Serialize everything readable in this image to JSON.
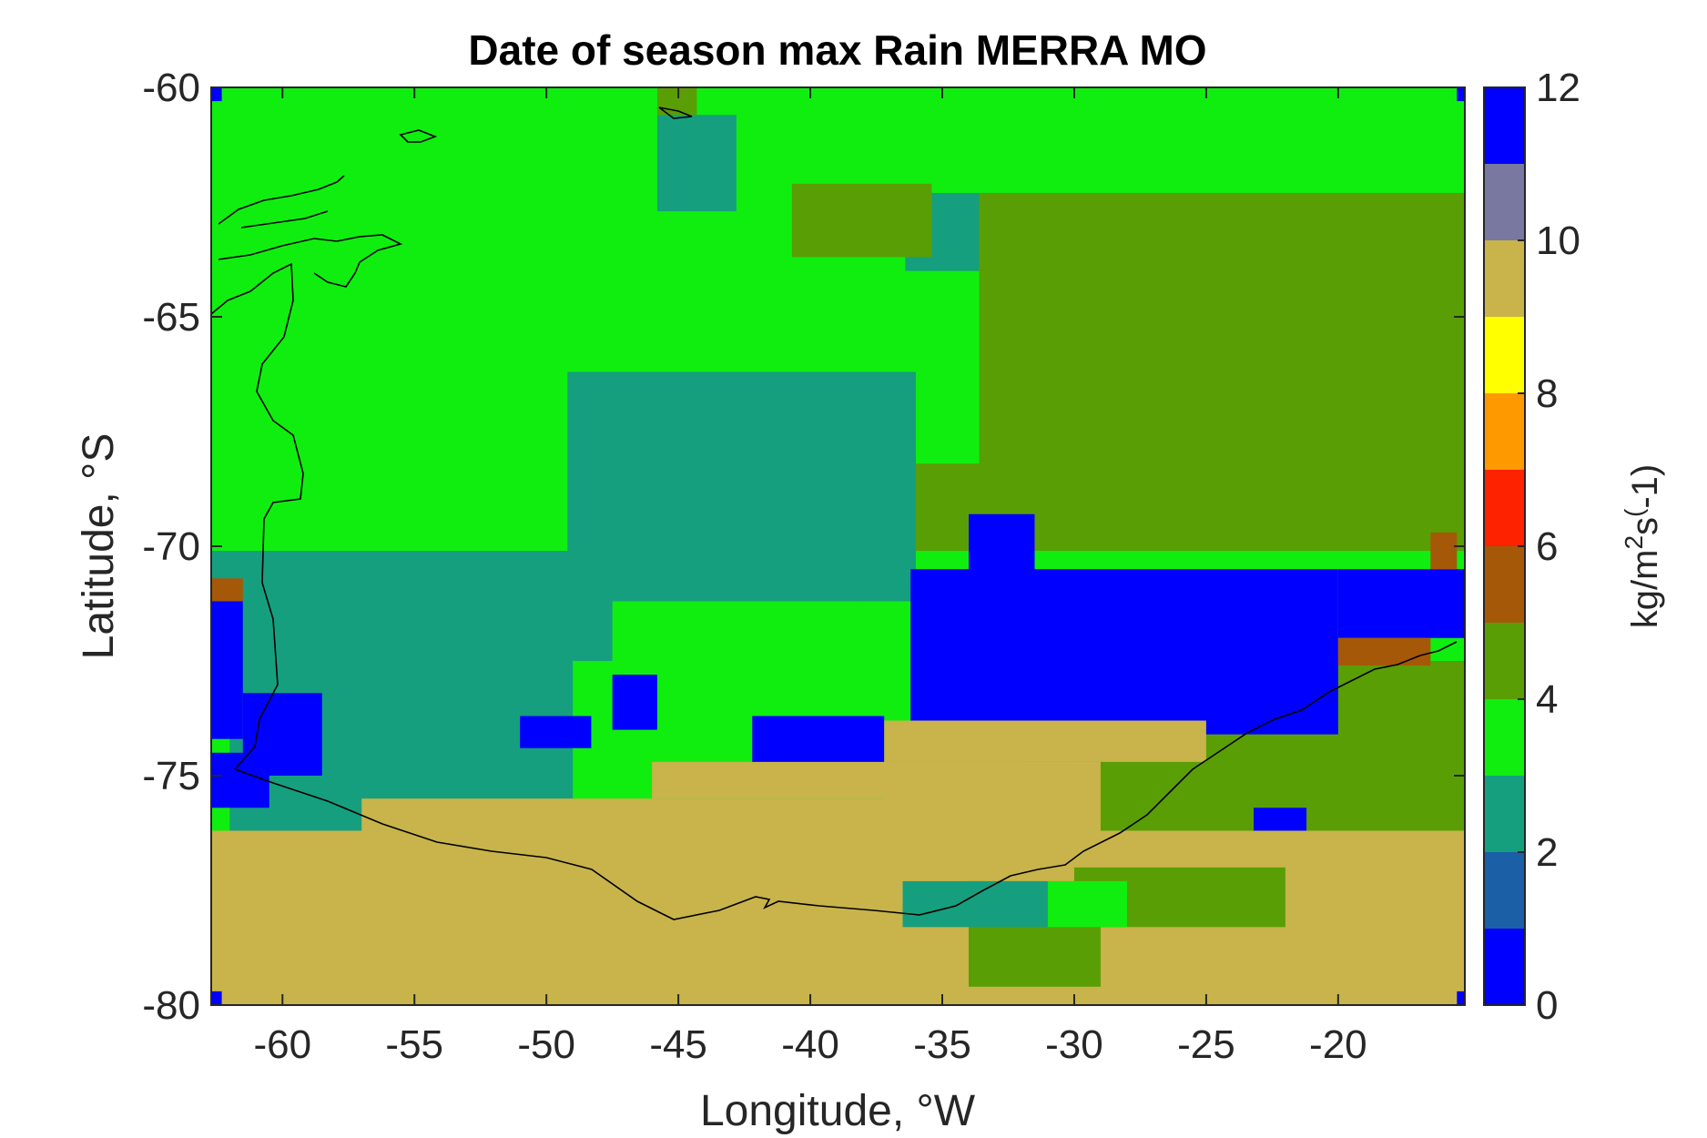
{
  "chart_data": {
    "type": "heatmap",
    "title": "Date of season max Rain MERRA MO",
    "xlabel": "Longitude, °W",
    "ylabel": "Latitude, °S",
    "xlim": [
      -62.7,
      -15.2
    ],
    "ylim": [
      -80,
      -60
    ],
    "xticks": [
      -60,
      -55,
      -50,
      -45,
      -40,
      -35,
      -30,
      -25,
      -20
    ],
    "yticks": [
      -60,
      -65,
      -70,
      -75,
      -80
    ],
    "colorbar": {
      "label": "kg/m^2s^(-1)",
      "label_main": "kg/m",
      "label_sup1": "2",
      "label_mid": "s",
      "label_sup2": "(",
      "label_end": "-1)",
      "range": [
        0,
        12
      ],
      "ticks": [
        0,
        2,
        4,
        6,
        8,
        10,
        12
      ],
      "colors": [
        "#0000ff",
        "#1b5fa6",
        "#169f7e",
        "#10ee10",
        "#5a9e05",
        "#a55808",
        "#ff2200",
        "#ff9900",
        "#ffff00",
        "#c8b44a",
        "#7878a0",
        "#0000ff"
      ]
    },
    "background_value": 3,
    "regions": [
      {
        "value": 2,
        "lon": [
          -45.8,
          -42.8
        ],
        "lat": [
          -62.7,
          -60.6
        ]
      },
      {
        "value": 2,
        "lon": [
          -36.4,
          -33.0
        ],
        "lat": [
          -64.0,
          -62.3
        ]
      },
      {
        "value": 4,
        "lon": [
          -40.7,
          -35.4
        ],
        "lat": [
          -63.7,
          -62.1
        ]
      },
      {
        "value": 4,
        "lon": [
          -45.8,
          -44.3
        ],
        "lat": [
          -60.6,
          -60.0
        ]
      },
      {
        "value": 4,
        "lon": [
          -33.6,
          -15.2
        ],
        "lat": [
          -68.3,
          -62.3
        ]
      },
      {
        "value": 4,
        "lon": [
          -36.5,
          -15.2
        ],
        "lat": [
          -70.1,
          -68.2
        ]
      },
      {
        "value": 2,
        "lon": [
          -49.2,
          -36.0
        ],
        "lat": [
          -71.2,
          -66.2
        ]
      },
      {
        "value": 2,
        "lon": [
          -62.7,
          -38.0
        ],
        "lat": [
          -72.5,
          -70.1
        ]
      },
      {
        "value": 2,
        "lon": [
          -62.0,
          -49.0
        ],
        "lat": [
          -76.3,
          -72.5
        ]
      },
      {
        "value": 2,
        "lon": [
          -61.0,
          -57.0
        ],
        "lat": [
          -76.7,
          -76.2
        ]
      },
      {
        "value": 3,
        "lon": [
          -47.5,
          -38.0
        ],
        "lat": [
          -75.5,
          -71.2
        ]
      },
      {
        "value": 4,
        "lon": [
          -32.0,
          -15.2
        ],
        "lat": [
          -79.8,
          -72.5
        ]
      },
      {
        "value": 3,
        "lon": [
          -25.0,
          -15.2
        ],
        "lat": [
          -79.0,
          -77.6
        ]
      },
      {
        "value": 11,
        "lon": [
          -36.2,
          -20.0
        ],
        "lat": [
          -74.1,
          -70.5
        ]
      },
      {
        "value": 11,
        "lon": [
          -20.0,
          -15.2
        ],
        "lat": [
          -72.0,
          -70.5
        ]
      },
      {
        "value": 11,
        "lon": [
          -34.0,
          -31.5
        ],
        "lat": [
          -71.1,
          -69.3
        ]
      },
      {
        "value": 11,
        "lon": [
          -61.5,
          -58.5
        ],
        "lat": [
          -75.0,
          -73.2
        ]
      },
      {
        "value": 11,
        "lon": [
          -62.7,
          -60.5
        ],
        "lat": [
          -75.7,
          -74.5
        ]
      },
      {
        "value": 11,
        "lon": [
          -42.2,
          -37.2
        ],
        "lat": [
          -75.2,
          -73.7
        ]
      },
      {
        "value": 11,
        "lon": [
          -51.0,
          -48.3
        ],
        "lat": [
          -74.4,
          -73.7
        ]
      },
      {
        "value": 11,
        "lon": [
          -47.5,
          -45.8
        ],
        "lat": [
          -74.0,
          -72.8
        ]
      },
      {
        "value": 11,
        "lon": [
          -23.2,
          -21.2
        ],
        "lat": [
          -76.7,
          -75.7
        ]
      },
      {
        "value": 11,
        "lon": [
          -46.0,
          -43.8
        ],
        "lat": [
          -80.0,
          -78.3
        ]
      },
      {
        "value": 5,
        "lon": [
          -20.0,
          -16.5
        ],
        "lat": [
          -72.6,
          -72.0
        ]
      },
      {
        "value": 5,
        "lon": [
          -16.5,
          -15.5
        ],
        "lat": [
          -70.5,
          -69.7
        ]
      },
      {
        "value": 5,
        "lon": [
          -62.7,
          -61.5
        ],
        "lat": [
          -71.2,
          -70.7
        ]
      },
      {
        "value": 0,
        "lon": [
          -62.7,
          -61.5
        ],
        "lat": [
          -74.2,
          -71.2
        ]
      },
      {
        "value": 9,
        "lon": [
          -62.7,
          -15.2
        ],
        "lat": [
          -80.0,
          -76.2
        ]
      },
      {
        "value": 9,
        "lon": [
          -57.0,
          -36.5
        ],
        "lat": [
          -76.2,
          -75.5
        ]
      },
      {
        "value": 9,
        "lon": [
          -46.0,
          -30.0
        ],
        "lat": [
          -75.5,
          -74.7
        ]
      },
      {
        "value": 9,
        "lon": [
          -37.2,
          -25.0
        ],
        "lat": [
          -74.7,
          -73.8
        ]
      },
      {
        "value": 9,
        "lon": [
          -37.2,
          -29.0
        ],
        "lat": [
          -76.2,
          -74.7
        ]
      },
      {
        "value": 4,
        "lon": [
          -34.0,
          -29.0
        ],
        "lat": [
          -79.6,
          -77.3
        ]
      },
      {
        "value": 4,
        "lon": [
          -30.0,
          -22.0
        ],
        "lat": [
          -78.3,
          -77.0
        ]
      },
      {
        "value": 2,
        "lon": [
          -36.5,
          -31.0
        ],
        "lat": [
          -78.3,
          -77.3
        ]
      },
      {
        "value": 3,
        "lon": [
          -31.0,
          -28.0
        ],
        "lat": [
          -78.3,
          -77.3
        ]
      },
      {
        "value": 11,
        "lon": [
          -62.7,
          -62.3
        ],
        "lat": [
          -60.3,
          -60.0
        ]
      },
      {
        "value": 11,
        "lon": [
          -15.5,
          -15.2
        ],
        "lat": [
          -60.3,
          -60.0
        ]
      },
      {
        "value": 11,
        "lon": [
          -62.7,
          -62.3
        ],
        "lat": [
          -80.0,
          -79.7
        ]
      },
      {
        "value": 11,
        "lon": [
          -15.5,
          -15.2
        ],
        "lat": [
          -80.0,
          -79.7
        ]
      }
    ]
  }
}
